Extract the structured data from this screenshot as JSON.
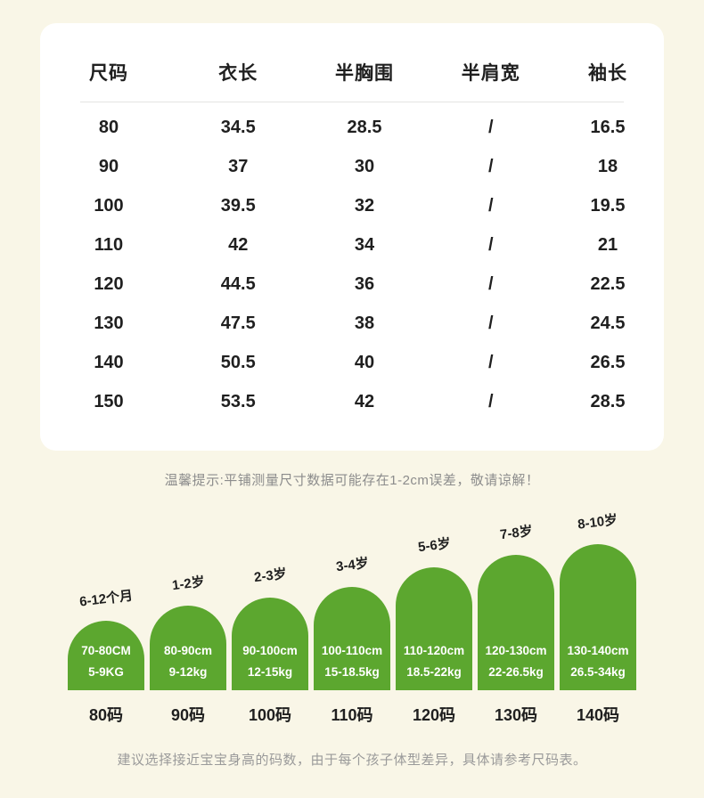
{
  "colors": {
    "background": "#F9F6E7",
    "card": "#FFFFFF",
    "arch_green": "#5CA72F",
    "text_dark": "#1F1F1F",
    "note_gray": "#8C8C8C"
  },
  "table": {
    "headers": [
      "尺码",
      "衣长",
      "半胸围",
      "半肩宽",
      "袖长"
    ],
    "rows": [
      [
        "80",
        "34.5",
        "28.5",
        "/",
        "16.5"
      ],
      [
        "90",
        "37",
        "30",
        "/",
        "18"
      ],
      [
        "100",
        "39.5",
        "32",
        "/",
        "19.5"
      ],
      [
        "110",
        "42",
        "34",
        "/",
        "21"
      ],
      [
        "120",
        "44.5",
        "36",
        "/",
        "22.5"
      ],
      [
        "130",
        "47.5",
        "38",
        "/",
        "24.5"
      ],
      [
        "140",
        "50.5",
        "40",
        "/",
        "26.5"
      ],
      [
        "150",
        "53.5",
        "42",
        "/",
        "28.5"
      ]
    ],
    "note": "温馨提示:平铺测量尺寸数据可能存在1-2cm误差，敬请谅解！"
  },
  "size_guide": {
    "columns": [
      {
        "age": "6-12个月",
        "height": "70-80CM",
        "weight": "5-9KG",
        "size": "80码"
      },
      {
        "age": "1-2岁",
        "height": "80-90cm",
        "weight": "9-12kg",
        "size": "90码"
      },
      {
        "age": "2-3岁",
        "height": "90-100cm",
        "weight": "12-15kg",
        "size": "100码"
      },
      {
        "age": "3-4岁",
        "height": "100-110cm",
        "weight": "15-18.5kg",
        "size": "110码"
      },
      {
        "age": "5-6岁",
        "height": "110-120cm",
        "weight": "18.5-22kg",
        "size": "120码"
      },
      {
        "age": "7-8岁",
        "height": "120-130cm",
        "weight": "22-26.5kg",
        "size": "130码"
      },
      {
        "age": "8-10岁",
        "height": "130-140cm",
        "weight": "26.5-34kg",
        "size": "140码"
      }
    ],
    "footer_note": "建议选择接近宝宝身高的码数，由于每个孩子体型差异，具体请参考尺码表。"
  }
}
